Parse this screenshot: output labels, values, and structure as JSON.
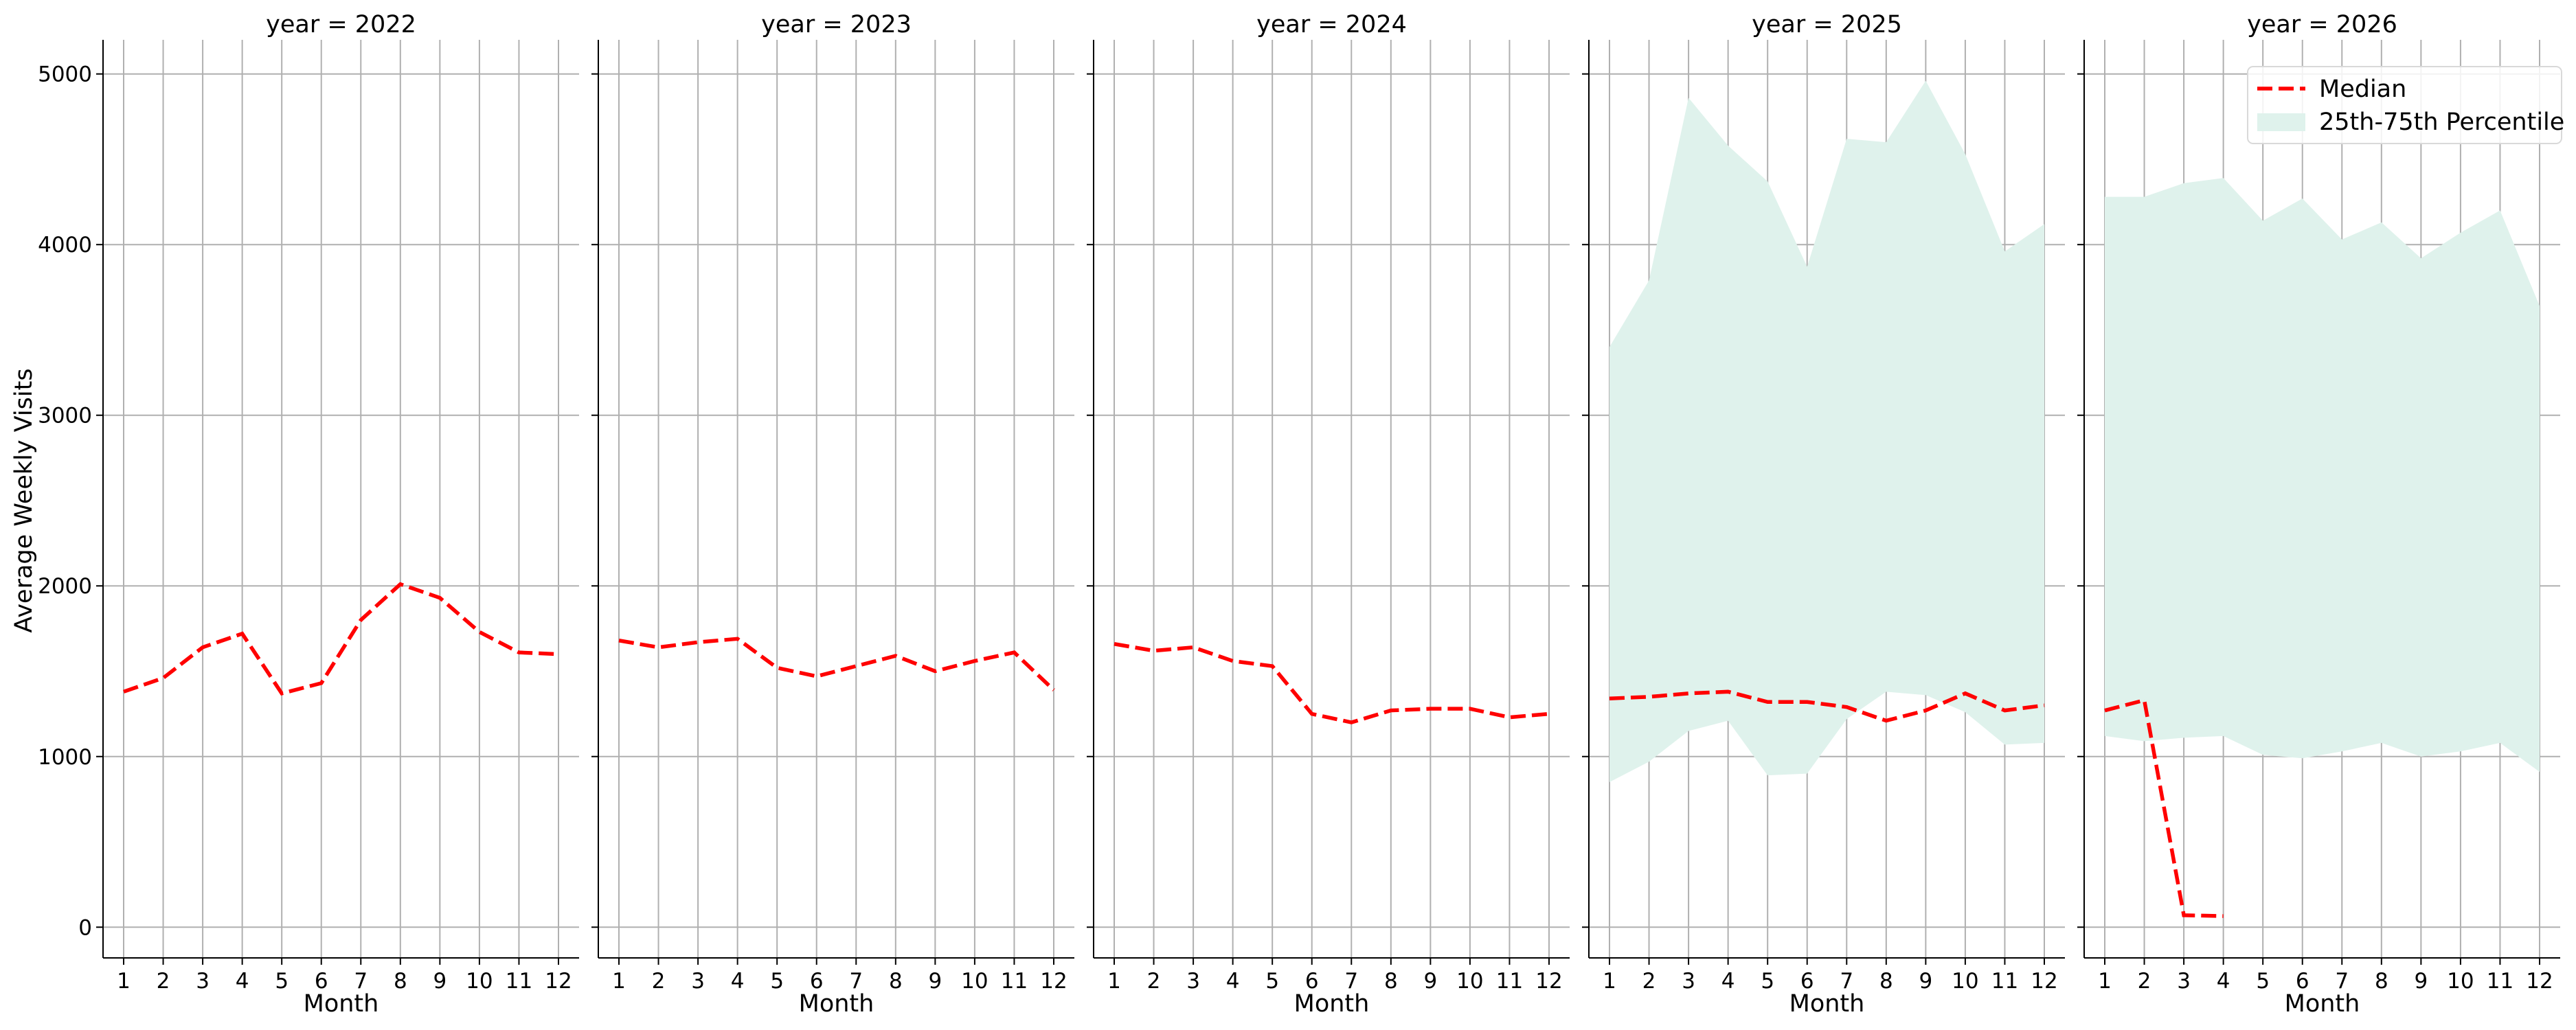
{
  "chart_data": {
    "type": "line",
    "ylabel": "Average Weekly Visits",
    "xlabel": "Month",
    "ylim": [
      -180,
      5200
    ],
    "yticks": [
      0,
      1000,
      2000,
      3000,
      4000,
      5000
    ],
    "xticks": [
      1,
      2,
      3,
      4,
      5,
      6,
      7,
      8,
      9,
      10,
      11,
      12
    ],
    "grid": true,
    "colors": {
      "median": "#ff0000",
      "band": "#dff2ec",
      "grid": "#b0b0b0"
    },
    "legend": {
      "placement": "top-right",
      "entries": [
        {
          "label": "Median",
          "kind": "line"
        },
        {
          "label": "25th-75th Percentile",
          "kind": "band"
        }
      ]
    },
    "panels": [
      {
        "title": "year = 2022",
        "median": [
          [
            1,
            1380
          ],
          [
            2,
            1460
          ],
          [
            3,
            1640
          ],
          [
            4,
            1720
          ],
          [
            5,
            1370
          ],
          [
            6,
            1430
          ],
          [
            7,
            1800
          ],
          [
            8,
            2010
          ],
          [
            9,
            1930
          ],
          [
            10,
            1730
          ],
          [
            11,
            1610
          ],
          [
            12,
            1600
          ]
        ]
      },
      {
        "title": "year = 2023",
        "median": [
          [
            1,
            1680
          ],
          [
            2,
            1640
          ],
          [
            3,
            1670
          ],
          [
            4,
            1690
          ],
          [
            5,
            1520
          ],
          [
            6,
            1470
          ],
          [
            7,
            1530
          ],
          [
            8,
            1590
          ],
          [
            9,
            1500
          ],
          [
            10,
            1560
          ],
          [
            11,
            1610
          ],
          [
            12,
            1390
          ]
        ]
      },
      {
        "title": "year = 2024",
        "median": [
          [
            1,
            1660
          ],
          [
            2,
            1620
          ],
          [
            3,
            1640
          ],
          [
            4,
            1560
          ],
          [
            5,
            1530
          ],
          [
            6,
            1250
          ],
          [
            7,
            1200
          ],
          [
            8,
            1270
          ],
          [
            9,
            1280
          ],
          [
            10,
            1280
          ],
          [
            11,
            1230
          ],
          [
            12,
            1250
          ]
        ]
      },
      {
        "title": "year = 2025",
        "median": [
          [
            1,
            1340
          ],
          [
            2,
            1350
          ],
          [
            3,
            1370
          ],
          [
            4,
            1380
          ],
          [
            5,
            1320
          ],
          [
            6,
            1320
          ],
          [
            7,
            1290
          ],
          [
            8,
            1210
          ],
          [
            9,
            1270
          ],
          [
            10,
            1370
          ],
          [
            11,
            1270
          ],
          [
            12,
            1300
          ]
        ],
        "band_upper": [
          [
            1,
            3400
          ],
          [
            2,
            3790
          ],
          [
            3,
            4860
          ],
          [
            4,
            4580
          ],
          [
            5,
            4370
          ],
          [
            6,
            3870
          ],
          [
            7,
            4620
          ],
          [
            8,
            4600
          ],
          [
            9,
            4960
          ],
          [
            10,
            4530
          ],
          [
            11,
            3960
          ],
          [
            12,
            4120
          ]
        ],
        "band_lower": [
          [
            1,
            850
          ],
          [
            2,
            970
          ],
          [
            3,
            1150
          ],
          [
            4,
            1210
          ],
          [
            5,
            890
          ],
          [
            6,
            900
          ],
          [
            7,
            1220
          ],
          [
            8,
            1380
          ],
          [
            9,
            1360
          ],
          [
            10,
            1260
          ],
          [
            11,
            1070
          ],
          [
            12,
            1080
          ]
        ]
      },
      {
        "title": "year = 2026",
        "median": [
          [
            1,
            1270
          ],
          [
            2,
            1330
          ],
          [
            3,
            70
          ],
          [
            4,
            65
          ]
        ],
        "band_upper": [
          [
            1,
            4280
          ],
          [
            2,
            4280
          ],
          [
            3,
            4360
          ],
          [
            4,
            4390
          ],
          [
            5,
            4140
          ],
          [
            6,
            4270
          ],
          [
            7,
            4030
          ],
          [
            8,
            4130
          ],
          [
            9,
            3920
          ],
          [
            10,
            4070
          ],
          [
            11,
            4200
          ],
          [
            12,
            3640
          ]
        ],
        "band_lower": [
          [
            1,
            1120
          ],
          [
            2,
            1090
          ],
          [
            3,
            1110
          ],
          [
            4,
            1120
          ],
          [
            5,
            1010
          ],
          [
            6,
            990
          ],
          [
            7,
            1030
          ],
          [
            8,
            1080
          ],
          [
            9,
            1000
          ],
          [
            10,
            1030
          ],
          [
            11,
            1080
          ],
          [
            12,
            910
          ]
        ]
      }
    ]
  }
}
